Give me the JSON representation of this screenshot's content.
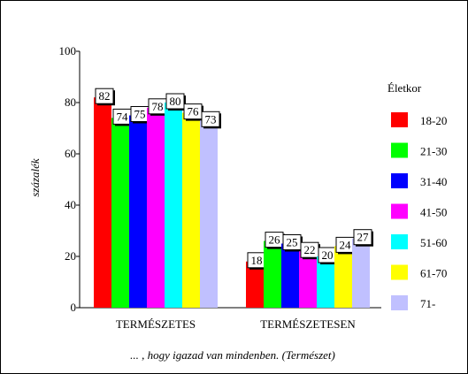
{
  "chart_data": {
    "type": "bar",
    "title": "",
    "ylabel": "százalék",
    "xlabel": "... , hogy igazad van mindenben. (Természet)",
    "ylim": [
      0,
      100
    ],
    "yticks": [
      0,
      20,
      40,
      60,
      80,
      100
    ],
    "categories": [
      "TERMÉSZETES",
      "TERMÉSZETESEN"
    ],
    "legend_title": "Életkor",
    "legend_position": "right",
    "series": [
      {
        "name": "18-20",
        "color": "#ff0000",
        "values": [
          82,
          18
        ]
      },
      {
        "name": "21-30",
        "color": "#00ff00",
        "values": [
          74,
          26
        ]
      },
      {
        "name": "31-40",
        "color": "#0000ff",
        "values": [
          75,
          25
        ]
      },
      {
        "name": "41-50",
        "color": "#ff00ff",
        "values": [
          78,
          22
        ]
      },
      {
        "name": "51-60",
        "color": "#00ffff",
        "values": [
          80,
          20
        ]
      },
      {
        "name": "61-70",
        "color": "#ffff00",
        "values": [
          76,
          24
        ]
      },
      {
        "name": "71-",
        "color": "#c0c0ff",
        "values": [
          73,
          27
        ]
      }
    ]
  }
}
